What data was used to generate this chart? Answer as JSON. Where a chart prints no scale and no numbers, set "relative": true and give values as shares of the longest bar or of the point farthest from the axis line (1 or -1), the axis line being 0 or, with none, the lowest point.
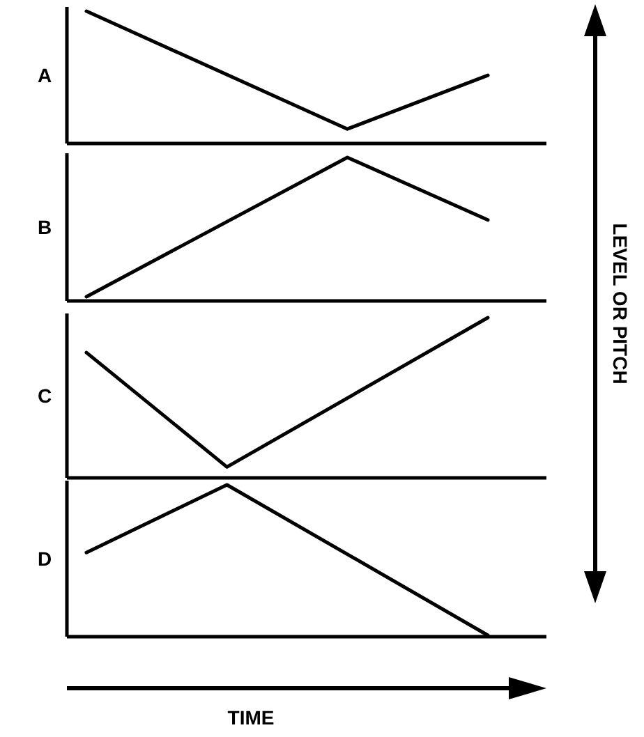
{
  "chart_data": [
    {
      "type": "line",
      "title": "A",
      "relative": true,
      "ylabel": "LEVEL OR PITCH",
      "categories": [
        null,
        null,
        null,
        null,
        null,
        null,
        null,
        null,
        null,
        null,
        null,
        null,
        null,
        null,
        null,
        null,
        null,
        null,
        null,
        null,
        null
      ],
      "series": [
        {
          "color": "#000000",
          "values": [
            1,
            null,
            null,
            null,
            null,
            null,
            null,
            null,
            null,
            null,
            null,
            null,
            null,
            0.1,
            null,
            null,
            null,
            null,
            null,
            null,
            0.51
          ]
        }
      ]
    },
    {
      "type": "line",
      "title": "B",
      "relative": true,
      "categories": [
        null,
        null,
        null,
        null,
        null,
        null,
        null,
        null,
        null,
        null,
        null,
        null,
        null,
        null,
        null,
        null,
        null,
        null,
        null,
        null,
        null
      ],
      "series": [
        {
          "color": "#000000",
          "values": [
            0.02,
            null,
            null,
            null,
            null,
            null,
            null,
            null,
            null,
            null,
            null,
            null,
            null,
            1,
            null,
            null,
            null,
            null,
            null,
            null,
            0.56
          ]
        }
      ]
    },
    {
      "type": "line",
      "title": "C",
      "relative": true,
      "categories": [
        null,
        null,
        null,
        null,
        null,
        null,
        null,
        null,
        null,
        null,
        null,
        null,
        null,
        null,
        null,
        null,
        null,
        null,
        null,
        null,
        null
      ],
      "series": [
        {
          "color": "#000000",
          "values": [
            0.78,
            null,
            null,
            null,
            null,
            null,
            null,
            0.06,
            null,
            null,
            null,
            null,
            null,
            null,
            null,
            null,
            null,
            null,
            null,
            null,
            1
          ]
        }
      ]
    },
    {
      "type": "line",
      "title": "D",
      "relative": true,
      "xlabel": "TIME",
      "categories": [
        null,
        null,
        null,
        null,
        null,
        null,
        null,
        null,
        null,
        null,
        null,
        null,
        null,
        null,
        null,
        null,
        null,
        null,
        null,
        null,
        null
      ],
      "series": [
        {
          "color": "#000000",
          "values": [
            0.55,
            null,
            null,
            null,
            null,
            null,
            null,
            1,
            null,
            null,
            null,
            null,
            null,
            null,
            null,
            null,
            null,
            null,
            null,
            null,
            0
          ]
        }
      ]
    }
  ]
}
